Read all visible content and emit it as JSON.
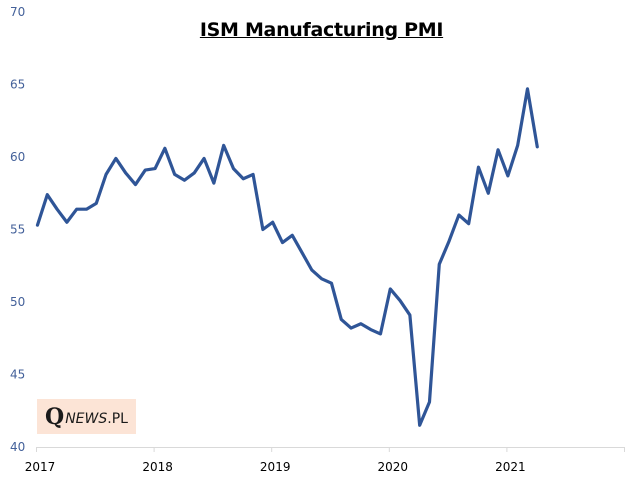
{
  "chart_data": {
    "type": "line",
    "title": "ISM Manufacturing  PMI",
    "xlabel": "",
    "ylabel": "",
    "ylim": [
      40,
      70
    ],
    "yticks": [
      "40",
      "45",
      "50",
      "55",
      "60",
      "65",
      "70"
    ],
    "xticks": [
      "2017",
      "2018",
      "2019",
      "2020",
      "2021"
    ],
    "x_range_months": [
      0,
      60
    ],
    "grid": false,
    "legend": "none",
    "series": [
      {
        "name": "ISM Manufacturing PMI",
        "color": "#2f5597",
        "start": "2017-01",
        "frequency": "monthly",
        "values": [
          55.3,
          57.4,
          56.4,
          55.5,
          56.4,
          56.4,
          56.8,
          58.8,
          59.9,
          58.9,
          58.1,
          59.1,
          59.2,
          60.6,
          58.8,
          58.4,
          58.9,
          59.9,
          58.2,
          60.8,
          59.2,
          58.5,
          58.8,
          55.0,
          55.5,
          54.1,
          54.6,
          53.4,
          52.2,
          51.6,
          51.3,
          48.8,
          48.2,
          48.5,
          48.1,
          47.8,
          50.9,
          50.1,
          49.1,
          41.5,
          43.1,
          52.6,
          54.2,
          56.0,
          55.4,
          59.3,
          57.5,
          60.5,
          58.7,
          60.8,
          64.7,
          60.7
        ]
      }
    ]
  },
  "logo": {
    "q": "Q",
    "news": "NEWS",
    "pl": ".PL"
  }
}
